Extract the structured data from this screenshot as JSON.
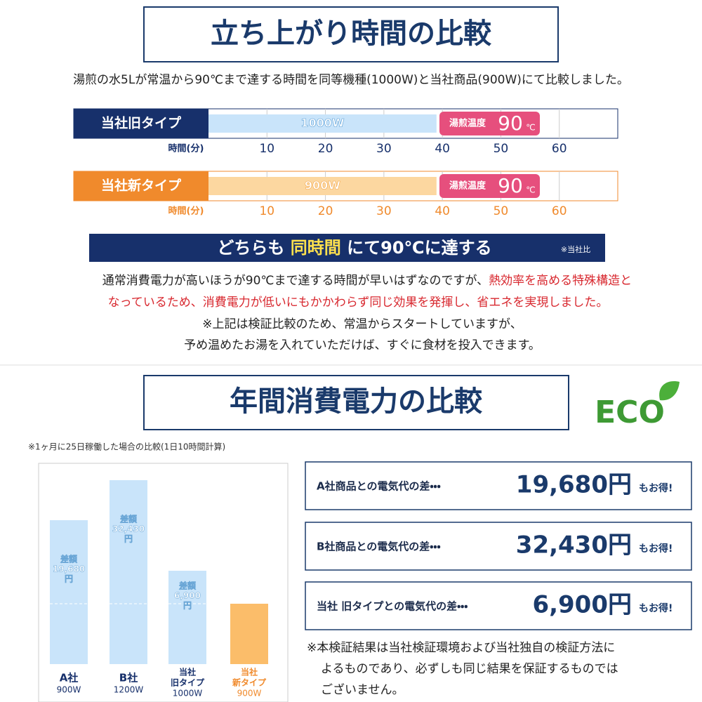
{
  "section1": {
    "title": "立ち上がり時間の比較",
    "intro": "湯煎の水5Lが常温から90℃まで達する時間を同等機種(1000W)と当社商品(900W)にて比較しました。",
    "timelines": {
      "type": "bar",
      "xlim": [
        0,
        70
      ],
      "xticks": [
        10,
        20,
        30,
        40,
        50,
        60
      ],
      "axis_label": "時間(分)",
      "badge": {
        "text": "湯煎温度",
        "value": "90",
        "unit": "℃"
      },
      "rows": [
        {
          "label": "当社旧タイプ",
          "bar_label": "1000W",
          "value": 39,
          "label_color": "#17306b",
          "bar_color": "#c9e4fa",
          "axis_color": "#17306b"
        },
        {
          "label": "当社新タイプ",
          "bar_label": "900W",
          "value": 39,
          "label_color": "#f08a2c",
          "bar_color": "#fcd7a0",
          "axis_color": "#f08a2c"
        }
      ]
    },
    "banner": {
      "before": "どちらも",
      "highlight": "同時間",
      "after": "にて90℃に達する",
      "note": "※当社比"
    },
    "paragraph": [
      {
        "text": "通常消費電力が高いほうが90℃まで達する時間が早いはずなのですが、",
        "red": "熱効率を高める特殊構造と"
      },
      {
        "red": "なっているため、消費電力が低いにもかかわらず同じ効果を発揮し、省エネを実現しました。"
      },
      {
        "text": "※上記は検証比較のため、常温からスタートしていますが、"
      },
      {
        "text": "予め温めたお湯を入れていただけば、すぐに食材を投入できます。"
      }
    ]
  },
  "section2": {
    "title": "年間消費電力の比較",
    "eco": "ECO",
    "note": "※1ヶ月に25日稼働した場合の比較(1日10時間計算)",
    "chart": {
      "type": "bar",
      "ylim": [
        0,
        286
      ],
      "bars": [
        {
          "name": [
            "A社"
          ],
          "watt": "900W",
          "value": 205,
          "color": "#c9e4fa",
          "text_color": "#17306b",
          "diff": [
            "差額",
            "19,680",
            "円"
          ]
        },
        {
          "name": [
            "B社"
          ],
          "watt": "1200W",
          "value": 262,
          "color": "#c9e4fa",
          "text_color": "#17306b",
          "diff": [
            "差額",
            "32,430",
            "円"
          ]
        },
        {
          "name": [
            "当社",
            "旧タイプ"
          ],
          "watt": "1000W",
          "value": 133,
          "color": "#c9e4fa",
          "text_color": "#17306b",
          "diff": [
            "差額",
            "6,900",
            "円"
          ]
        },
        {
          "name": [
            "当社",
            "新タイプ"
          ],
          "watt": "900W",
          "value": 86,
          "color": "#fbbd6a",
          "text_color": "#f08a2c"
        }
      ]
    },
    "cards": [
      {
        "label": "A社商品との電気代の差・・・",
        "amount": "19,680円",
        "suffix": "もお得!"
      },
      {
        "label": "B社商品との電気代の差・・・",
        "amount": "32,430円",
        "suffix": "もお得!"
      },
      {
        "label": "当社 旧タイプとの電気代の差・・・",
        "amount": "6,900円",
        "suffix": "もお得!"
      }
    ],
    "footnote": [
      "※本検証結果は当社検証環境および当社独自の検証方法に",
      "よるものであり、必ずしも同じ結果を保証するものでは",
      "ございません。"
    ]
  }
}
